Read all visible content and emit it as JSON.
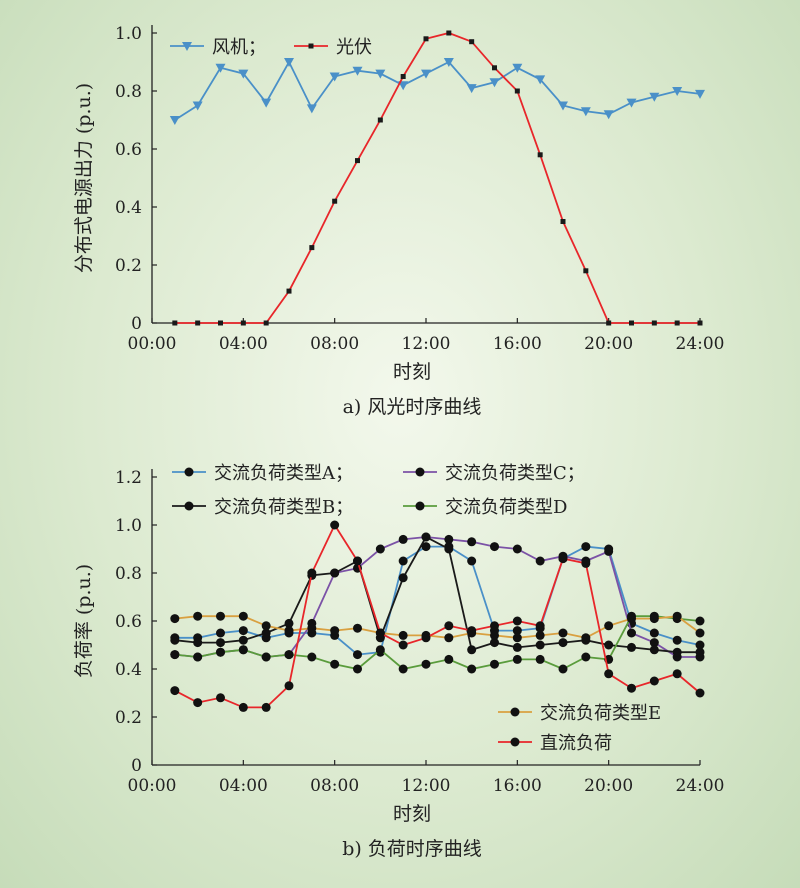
{
  "chart_data": [
    {
      "type": "line",
      "caption": "a) 风光时序曲线",
      "xlabel": "时刻",
      "ylabel": "分布式电源出力 (p.u.)",
      "xticks": [
        "00:00",
        "04:00",
        "08:00",
        "12:00",
        "16:00",
        "20:00",
        "24:00"
      ],
      "yticks": [
        "0",
        "0.2",
        "0.4",
        "0.6",
        "0.8",
        "1.0"
      ],
      "xlim": [
        0,
        24
      ],
      "ylim": [
        0,
        1.0
      ],
      "legend_position": "top-left",
      "x": [
        1,
        2,
        3,
        4,
        5,
        6,
        7,
        8,
        9,
        10,
        11,
        12,
        13,
        14,
        15,
        16,
        17,
        18,
        19,
        20,
        21,
        22,
        23,
        24
      ],
      "series": [
        {
          "name": "风机；",
          "color": "#4a90c8",
          "marker": "triangle-down",
          "values": [
            0.7,
            0.75,
            0.88,
            0.86,
            0.76,
            0.9,
            0.74,
            0.85,
            0.87,
            0.86,
            0.82,
            0.86,
            0.9,
            0.81,
            0.83,
            0.88,
            0.84,
            0.75,
            0.73,
            0.72,
            0.76,
            0.78,
            0.8,
            0.79
          ]
        },
        {
          "name": "光伏",
          "color": "#e8262a",
          "marker": "square",
          "values": [
            0,
            0,
            0,
            0,
            0,
            0.11,
            0.26,
            0.42,
            0.56,
            0.7,
            0.85,
            0.98,
            1.0,
            0.97,
            0.88,
            0.8,
            0.58,
            0.35,
            0.18,
            0,
            0,
            0,
            0,
            0
          ]
        }
      ]
    },
    {
      "type": "line",
      "caption": "b) 负荷时序曲线",
      "xlabel": "时刻",
      "ylabel": "负荷率 (p.u.)",
      "xticks": [
        "00:00",
        "04:00",
        "08:00",
        "12:00",
        "16:00",
        "20:00",
        "24:00"
      ],
      "yticks": [
        "0",
        "0.2",
        "0.4",
        "0.6",
        "0.8",
        "1.0",
        "1.2"
      ],
      "xlim": [
        0,
        24
      ],
      "ylim": [
        0,
        1.2
      ],
      "legend_position": "top, bottom-right",
      "x": [
        1,
        2,
        3,
        4,
        5,
        6,
        7,
        8,
        9,
        10,
        11,
        12,
        13,
        14,
        15,
        16,
        17,
        18,
        19,
        20,
        21,
        22,
        23,
        24
      ],
      "series": [
        {
          "name": "交流负荷类型A；",
          "color": "#4a90c8",
          "values": [
            0.53,
            0.53,
            0.55,
            0.56,
            0.53,
            0.55,
            0.55,
            0.54,
            0.46,
            0.47,
            0.85,
            0.91,
            0.91,
            0.85,
            0.56,
            0.56,
            0.57,
            0.86,
            0.91,
            0.9,
            0.59,
            0.55,
            0.52,
            0.5
          ]
        },
        {
          "name": "交流负荷类型C；",
          "color": "#7b52a6",
          "values": [
            0.46,
            0.45,
            0.47,
            0.48,
            0.45,
            0.46,
            0.59,
            0.8,
            0.82,
            0.9,
            0.94,
            0.95,
            0.94,
            0.93,
            0.91,
            0.9,
            0.85,
            0.87,
            0.85,
            0.89,
            0.55,
            0.51,
            0.45,
            0.45
          ]
        },
        {
          "name": "交流负荷类型B；",
          "color": "#1a1a1a",
          "values": [
            0.52,
            0.51,
            0.51,
            0.52,
            0.55,
            0.59,
            0.79,
            0.8,
            0.85,
            0.53,
            0.78,
            0.95,
            0.9,
            0.48,
            0.51,
            0.49,
            0.5,
            0.51,
            0.52,
            0.5,
            0.49,
            0.48,
            0.47,
            0.47
          ]
        },
        {
          "name": "交流负荷类型D",
          "color": "#5a9c3c",
          "values": [
            0.46,
            0.45,
            0.47,
            0.48,
            0.45,
            0.46,
            0.45,
            0.42,
            0.4,
            0.48,
            0.4,
            0.42,
            0.44,
            0.4,
            0.42,
            0.44,
            0.44,
            0.4,
            0.45,
            0.44,
            0.62,
            0.62,
            0.61,
            0.6
          ]
        },
        {
          "name": "交流负荷类型E",
          "color": "#d9a040",
          "values": [
            0.61,
            0.62,
            0.62,
            0.62,
            0.58,
            0.56,
            0.57,
            0.56,
            0.57,
            0.55,
            0.54,
            0.54,
            0.53,
            0.55,
            0.54,
            0.53,
            0.54,
            0.55,
            0.53,
            0.58,
            0.61,
            0.61,
            0.62,
            0.55
          ]
        },
        {
          "name": "直流负荷",
          "color": "#e8262a",
          "values": [
            0.31,
            0.26,
            0.28,
            0.24,
            0.24,
            0.33,
            0.8,
            1.0,
            0.85,
            0.55,
            0.5,
            0.53,
            0.58,
            0.56,
            0.58,
            0.6,
            0.58,
            0.86,
            0.84,
            0.38,
            0.32,
            0.35,
            0.38,
            0.3
          ]
        }
      ]
    }
  ]
}
